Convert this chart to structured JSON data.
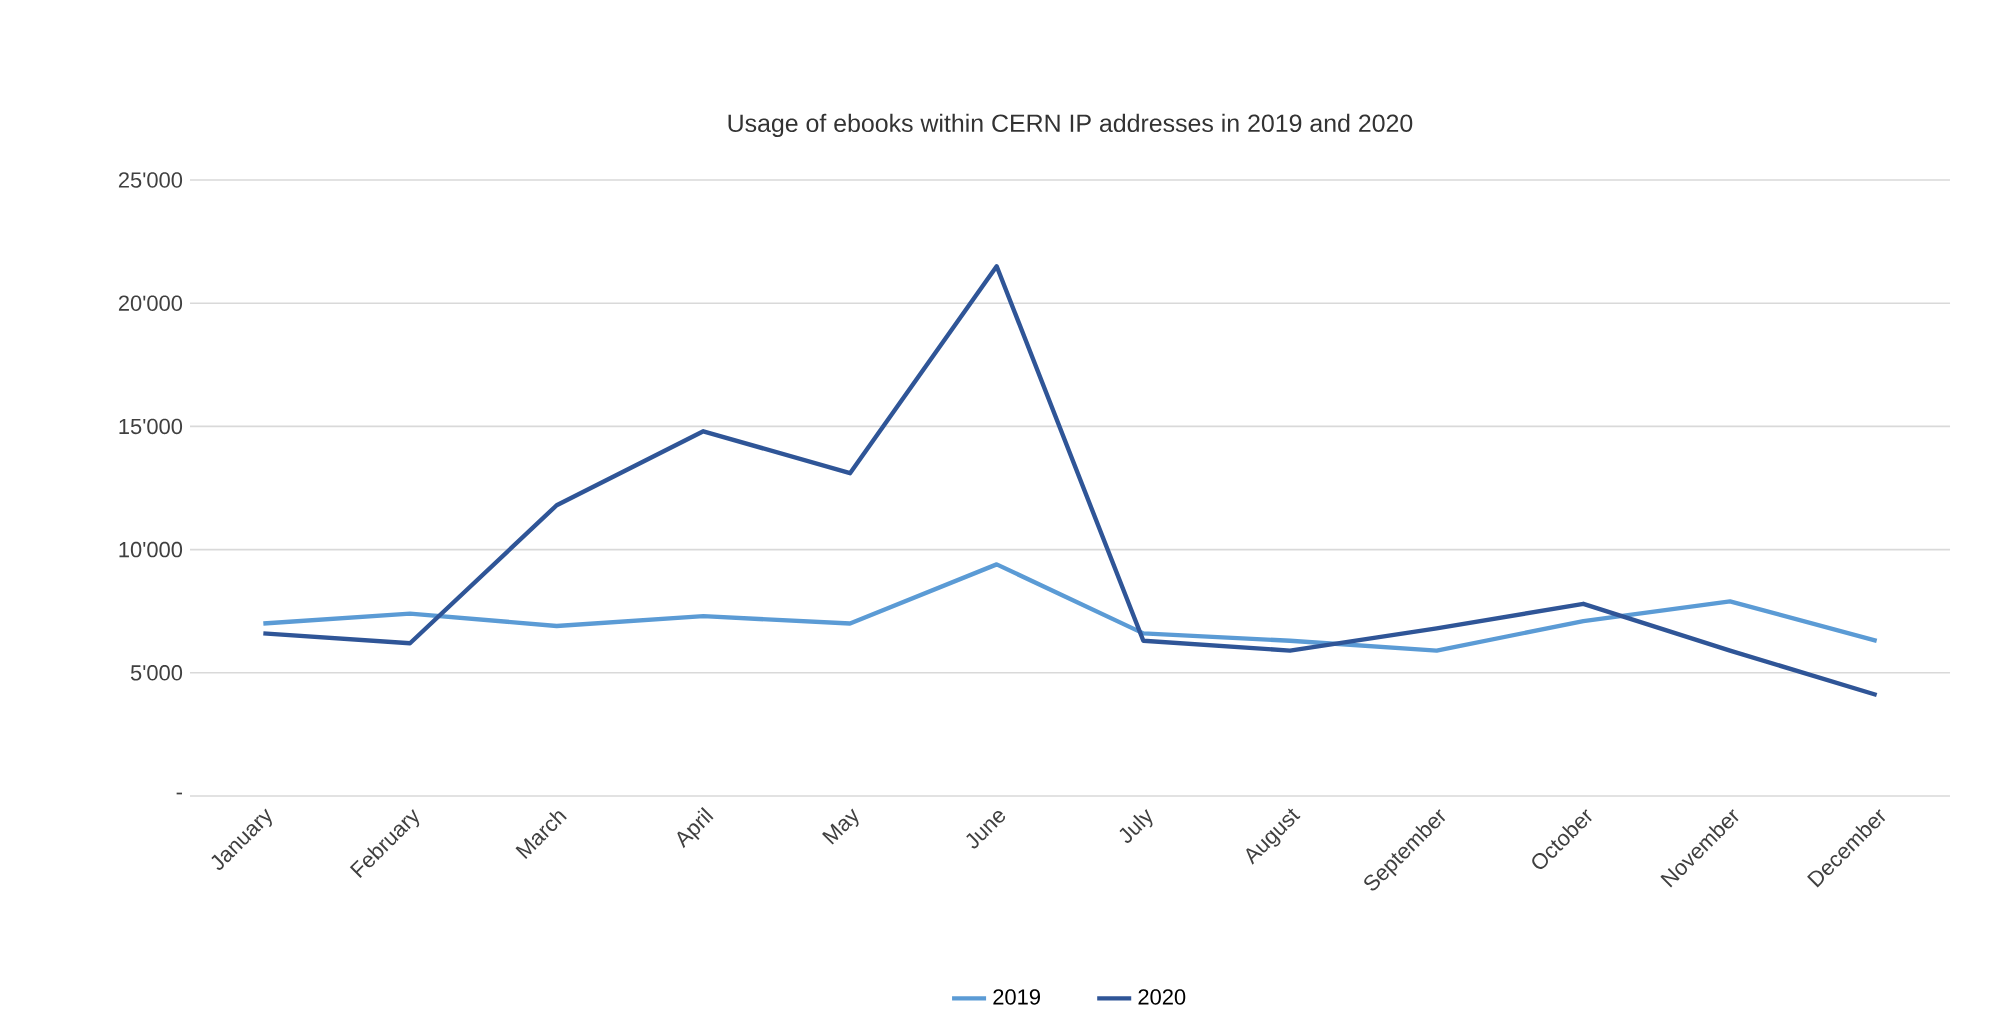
{
  "chart_data": {
    "type": "line",
    "title": "Usage of ebooks within CERN IP addresses in 2019 and 2020",
    "categories": [
      "January",
      "February",
      "March",
      "April",
      "May",
      "June",
      "July",
      "August",
      "September",
      "October",
      "November",
      "December"
    ],
    "series": [
      {
        "name": "2019",
        "color": "#5b9bd5",
        "values": [
          7000,
          7400,
          6900,
          7300,
          7000,
          9400,
          6600,
          6300,
          5900,
          7100,
          7900,
          6300
        ]
      },
      {
        "name": "2020",
        "color": "#2f5597",
        "values": [
          6600,
          6200,
          11800,
          14800,
          13100,
          21500,
          6300,
          5900,
          6800,
          7800,
          5900,
          4100
        ]
      }
    ],
    "ylim": [
      0,
      25000
    ],
    "yticks": [
      {
        "value": 0,
        "label": "-"
      },
      {
        "value": 5000,
        "label": "5'000"
      },
      {
        "value": 10000,
        "label": "10'000"
      },
      {
        "value": 15000,
        "label": "15'000"
      },
      {
        "value": 20000,
        "label": "20'000"
      },
      {
        "value": 25000,
        "label": "25'000"
      }
    ],
    "grid": "y",
    "legend": "bottom",
    "marker": "none",
    "line_style": "solid"
  }
}
